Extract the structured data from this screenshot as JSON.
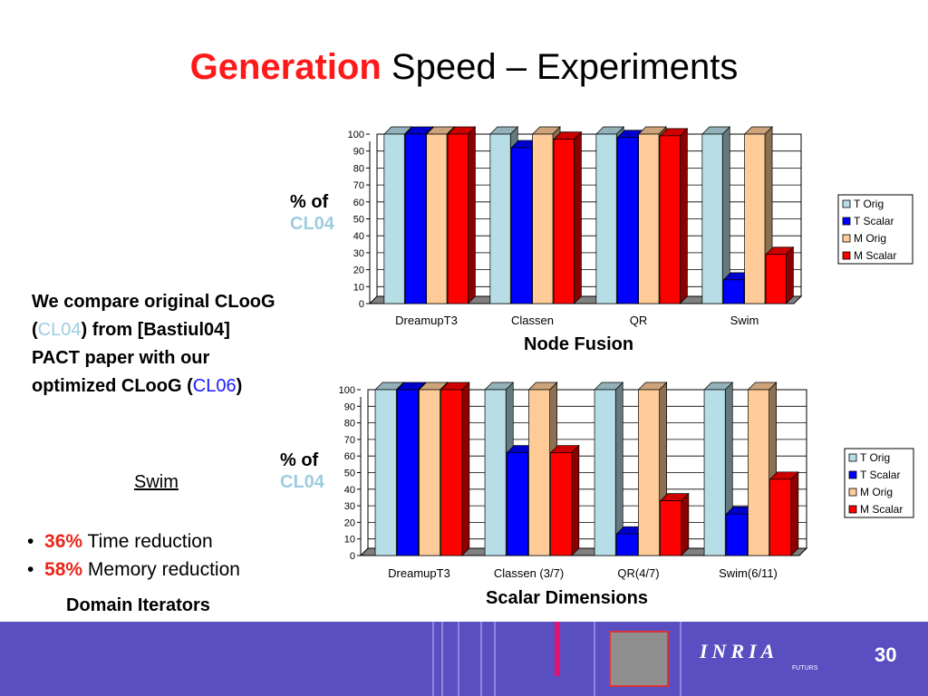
{
  "slide": {
    "title_accent": "Generation",
    "title_rest": " Speed – Experiments",
    "ylabel_line1": "% of",
    "ylabel_line2": "CL04",
    "desc_line1": "We compare original CLooG",
    "desc_cl04": "CL04",
    "desc_line2_rest": ") from [Bastiul04]",
    "desc_line3": "PACT paper with our",
    "desc_line4_pre": "optimized CLooG (",
    "desc_cl06": "CL06",
    "swim_label": "Swim",
    "bullet1_pct": "36%",
    "bullet1_text": " Time reduction",
    "bullet2_pct": "58%",
    "bullet2_text": " Memory reduction",
    "domain_iterators": "Domain Iterators",
    "logo_text": "INRIA",
    "logo_sub": "FUTURS",
    "page_number": "30"
  },
  "chart_data": [
    {
      "type": "bar",
      "title": "Node Fusion",
      "categories": [
        "DreamupT3",
        "Classen",
        "QR",
        "Swim"
      ],
      "ylim": [
        0,
        100
      ],
      "yticks": [
        0,
        10,
        20,
        30,
        40,
        50,
        60,
        70,
        80,
        90,
        100
      ],
      "grid": true,
      "legend_position": "right",
      "series": [
        {
          "name": "T Orig",
          "color": "#b7dde6",
          "values": [
            100,
            100,
            100,
            100
          ]
        },
        {
          "name": "T Scalar",
          "color": "#0000ff",
          "values": [
            100,
            92,
            98,
            14
          ]
        },
        {
          "name": "M Orig",
          "color": "#ffcc99",
          "values": [
            100,
            100,
            100,
            100
          ]
        },
        {
          "name": "M Scalar",
          "color": "#ff0000",
          "values": [
            100,
            97,
            99,
            29
          ]
        }
      ]
    },
    {
      "type": "bar",
      "title": "Scalar Dimensions",
      "categories": [
        "DreamupT3",
        "Classen (3/7)",
        "QR(4/7)",
        "Swim(6/11)"
      ],
      "ylim": [
        0,
        100
      ],
      "yticks": [
        0,
        10,
        20,
        30,
        40,
        50,
        60,
        70,
        80,
        90,
        100
      ],
      "grid": true,
      "legend_position": "right",
      "series": [
        {
          "name": "T Orig",
          "color": "#b7dde6",
          "values": [
            100,
            100,
            100,
            100
          ]
        },
        {
          "name": "T Scalar",
          "color": "#0000ff",
          "values": [
            100,
            62,
            13,
            25
          ]
        },
        {
          "name": "M Orig",
          "color": "#ffcc99",
          "values": [
            100,
            100,
            100,
            100
          ]
        },
        {
          "name": "M Scalar",
          "color": "#ff0000",
          "values": [
            100,
            62,
            33,
            46
          ]
        }
      ]
    }
  ]
}
